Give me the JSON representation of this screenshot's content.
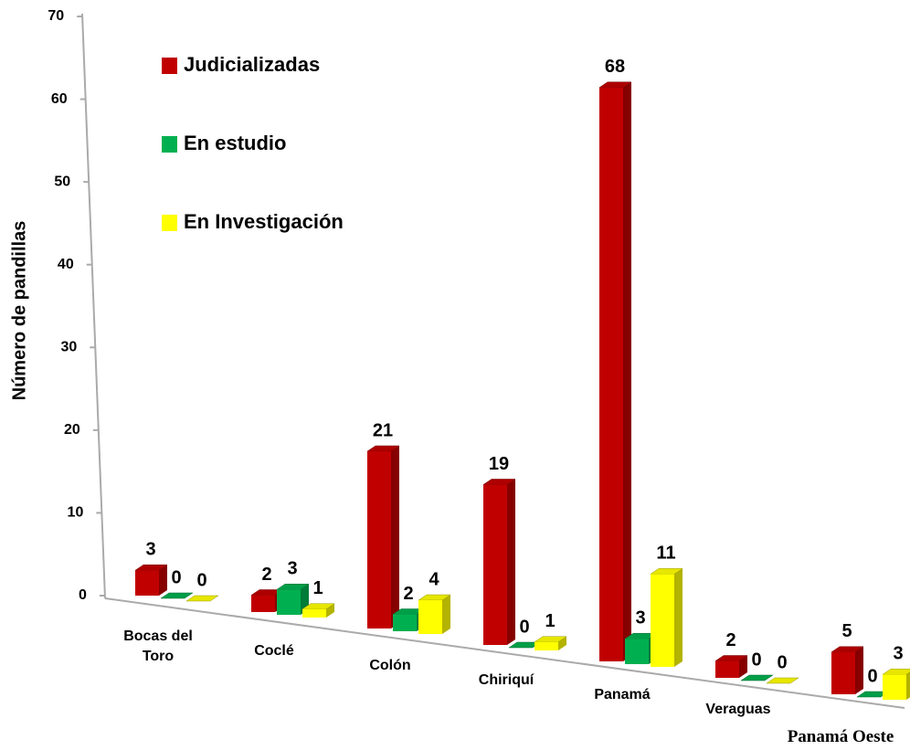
{
  "chart_data": {
    "type": "bar3d",
    "ylabel": "Número de pandillas",
    "categories": [
      "Bocas del Toro",
      "Coclé",
      "Colón",
      "Chiriquí",
      "Panamá",
      "Veraguas",
      "Panamá Oeste"
    ],
    "series": [
      {
        "name": "Judicializadas",
        "color": "#c00000",
        "values": [
          3,
          2,
          21,
          19,
          68,
          2,
          5
        ]
      },
      {
        "name": "En estudio",
        "color": "#00b050",
        "values": [
          0,
          3,
          2,
          0,
          3,
          0,
          0
        ]
      },
      {
        "name": "En Investigación",
        "color": "#ffff00",
        "values": [
          0,
          1,
          4,
          1,
          11,
          0,
          3
        ]
      }
    ],
    "ylim": [
      0,
      70
    ],
    "yticks": [
      0,
      10,
      20,
      30,
      40,
      50,
      60,
      70
    ],
    "legend": "upper left"
  }
}
